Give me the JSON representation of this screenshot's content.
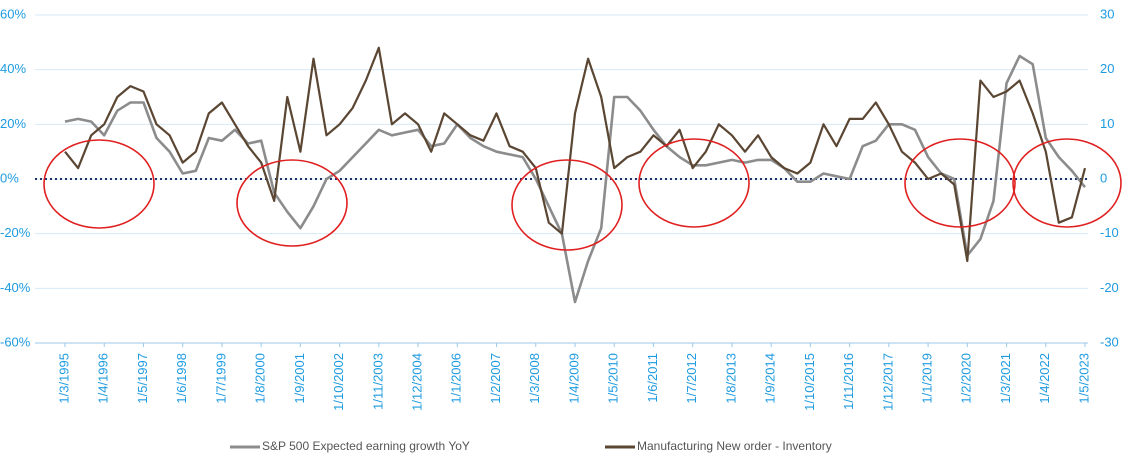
{
  "chart_data": {
    "type": "line",
    "categories": [
      "1/3/1995",
      null,
      null,
      "1/4/1996",
      null,
      null,
      "1/5/1997",
      null,
      null,
      "1/6/1998",
      null,
      null,
      "1/7/1999",
      null,
      null,
      "1/8/2000",
      null,
      null,
      "1/9/2001",
      null,
      null,
      "1/10/2002",
      null,
      null,
      "1/11/2003",
      null,
      null,
      "1/12/2004",
      null,
      null,
      "1/1/2006",
      null,
      null,
      "1/2/2007",
      null,
      null,
      "1/3/2008",
      null,
      null,
      "1/4/2009",
      null,
      null,
      "1/5/2010",
      null,
      null,
      "1/6/2011",
      null,
      null,
      "1/7/2012",
      null,
      null,
      "1/8/2013",
      null,
      null,
      "1/9/2014",
      null,
      null,
      "1/10/2015",
      null,
      null,
      "1/11/2016",
      null,
      null,
      "1/12/2017",
      null,
      null,
      "1/1/2019",
      null,
      null,
      "1/2/2020",
      null,
      null,
      "1/3/2021",
      null,
      null,
      "1/4/2022",
      null,
      null,
      "1/5/2023"
    ],
    "series": [
      {
        "name": "S&P 500 Expected earning growth YoY",
        "color": "#8c8c8c",
        "axis": "y",
        "values": [
          21,
          22,
          21,
          16,
          25,
          28,
          28,
          15,
          10,
          2,
          3,
          15,
          14,
          18,
          13,
          14,
          -5,
          -12,
          -18,
          -10,
          0,
          3,
          8,
          13,
          18,
          16,
          17,
          18,
          12,
          13,
          20,
          15,
          12,
          10,
          9,
          8,
          0,
          -10,
          -20,
          -45,
          -30,
          -18,
          30,
          30,
          25,
          18,
          12,
          8,
          5,
          5,
          6,
          7,
          6,
          7,
          7,
          4,
          -1,
          -1,
          2,
          1,
          0,
          12,
          14,
          20,
          20,
          18,
          8,
          2,
          0,
          -28,
          -22,
          -8,
          35,
          45,
          42,
          15,
          8,
          3,
          -3
        ]
      },
      {
        "name": "Manufacturing New order - Inventory",
        "color": "#5a4632",
        "axis": "y2",
        "values": [
          5,
          2,
          8,
          10,
          15,
          17,
          16,
          10,
          8,
          3,
          5,
          12,
          14,
          10,
          6,
          3,
          -4,
          15,
          5,
          22,
          8,
          10,
          13,
          18,
          24,
          10,
          12,
          10,
          5,
          12,
          10,
          8,
          7,
          12,
          6,
          5,
          2,
          -8,
          -10,
          12,
          22,
          15,
          2,
          4,
          5,
          8,
          6,
          9,
          2,
          5,
          10,
          8,
          5,
          8,
          4,
          2,
          1,
          3,
          10,
          6,
          11,
          11,
          14,
          10,
          5,
          3,
          0,
          1,
          -1,
          -15,
          18,
          15,
          16,
          18,
          12,
          5,
          -8,
          -7,
          2
        ]
      }
    ],
    "ylim": [
      -60,
      60
    ],
    "yticks": [
      {
        "value": 60,
        "label": "60%"
      },
      {
        "value": 40,
        "label": "40%"
      },
      {
        "value": 20,
        "label": "20%"
      },
      {
        "value": 0,
        "label": "0%"
      },
      {
        "value": -20,
        "label": "-20%"
      },
      {
        "value": -40,
        "label": "-40%"
      },
      {
        "value": -60,
        "label": "-60%"
      }
    ],
    "y2lim": [
      -30,
      30
    ],
    "y2ticks": [
      30,
      20,
      10,
      0,
      -10,
      -20,
      -30
    ],
    "grid": true
  }
}
